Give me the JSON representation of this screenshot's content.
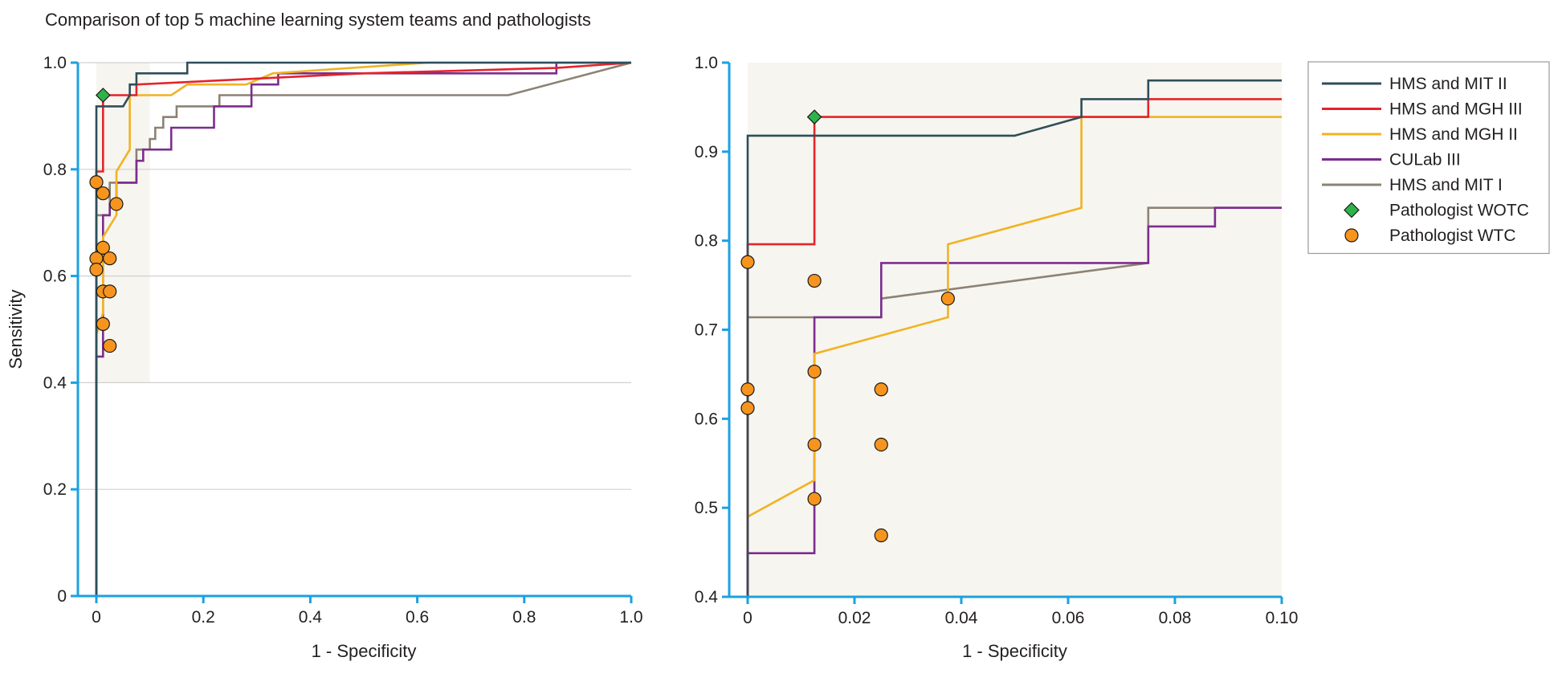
{
  "figure_title": "Comparison of top 5 machine learning system teams and pathologists",
  "colors": {
    "HMS and MIT II": "#2e4e5a",
    "HMS and MGH III": "#e3242b",
    "HMS and MGH II": "#f0b323",
    "CULab III": "#7b2d8e",
    "HMS and MIT I": "#8c8275",
    "Pathologist WOTC": "#2db34a",
    "Pathologist WTC": "#f7941d",
    "axis": "#1ba1e2",
    "grid": "#d0d0d0",
    "zoom_region": "#f7f5ef"
  },
  "chart_data": [
    {
      "type": "line",
      "subtype": "roc",
      "title": "",
      "xlabel": "1 - Specificity",
      "ylabel": "Sensitivity",
      "xlim": [
        0,
        1.0
      ],
      "ylim": [
        0,
        1.0
      ],
      "xticks": [
        "0",
        "0.2",
        "0.4",
        "0.6",
        "0.8",
        "1.0"
      ],
      "yticks": [
        "0",
        "0.2",
        "0.4",
        "0.6",
        "0.8",
        "1.0"
      ],
      "grid": "horizontal",
      "zoom_region": {
        "x": [
          0,
          0.1
        ],
        "y": [
          0.4,
          1.0
        ]
      },
      "series": [
        {
          "name": "HMS and MIT I",
          "x": [
            0,
            0,
            0.025,
            0.025,
            0.075,
            0.075,
            0.1,
            0.1,
            0.11,
            0.11,
            0.125,
            0.125,
            0.15,
            0.15,
            0.17,
            0.17,
            0.23,
            0.23,
            0.77,
            1.0
          ],
          "y": [
            0,
            0.714,
            0.714,
            0.775,
            0.775,
            0.837,
            0.837,
            0.857,
            0.857,
            0.878,
            0.878,
            0.898,
            0.898,
            0.918,
            0.918,
            0.918,
            0.918,
            0.939,
            0.939,
            1.0
          ]
        },
        {
          "name": "CULab III",
          "x": [
            0,
            0,
            0.0125,
            0.0125,
            0.025,
            0.025,
            0.0375,
            0.0375,
            0.075,
            0.075,
            0.0875,
            0.0875,
            0.125,
            0.125,
            0.14,
            0.14,
            0.22,
            0.22,
            0.29,
            0.29,
            0.34,
            0.34,
            0.86,
            0.86,
            1.0
          ],
          "y": [
            0,
            0.449,
            0.449,
            0.714,
            0.714,
            0.735,
            0.735,
            0.775,
            0.775,
            0.816,
            0.816,
            0.837,
            0.837,
            0.837,
            0.837,
            0.878,
            0.878,
            0.918,
            0.918,
            0.959,
            0.959,
            0.98,
            0.98,
            1.0,
            1.0
          ]
        },
        {
          "name": "HMS and MGH II",
          "x": [
            0,
            0.0125,
            0.0125,
            0.0375,
            0.0375,
            0.0625,
            0.0625,
            0.075,
            0.075,
            0.14,
            0.17,
            0.28,
            0.33,
            0.62,
            1.0
          ],
          "y": [
            0.49,
            0.531,
            0.673,
            0.714,
            0.796,
            0.837,
            0.939,
            0.939,
            0.939,
            0.939,
            0.959,
            0.959,
            0.98,
            1.0,
            1.0
          ]
        },
        {
          "name": "HMS and MGH III",
          "x": [
            0,
            0,
            0.0125,
            0.0125,
            0.075,
            0.075,
            0.5,
            0.86,
            1.0
          ],
          "y": [
            0,
            0.796,
            0.796,
            0.939,
            0.939,
            0.959,
            0.98,
            0.99,
            1.0
          ]
        },
        {
          "name": "HMS and MIT II",
          "x": [
            0,
            0,
            0.05,
            0.0625,
            0.0625,
            0.075,
            0.075,
            0.1,
            0.1,
            0.17,
            0.17,
            1.0
          ],
          "y": [
            0,
            0.918,
            0.918,
            0.939,
            0.959,
            0.959,
            0.98,
            0.98,
            0.98,
            0.98,
            1.0,
            1.0
          ]
        },
        {
          "name": "Pathologist WOTC",
          "type": "scatter",
          "x": [
            0.0125
          ],
          "y": [
            0.939
          ]
        },
        {
          "name": "Pathologist WTC",
          "type": "scatter",
          "x": [
            0,
            0,
            0,
            0.0125,
            0.0125,
            0.0125,
            0.0125,
            0.025,
            0.025,
            0.025,
            0.0375
          ],
          "y": [
            0.776,
            0.633,
            0.612,
            0.755,
            0.653,
            0.571,
            0.51,
            0.633,
            0.571,
            0.469,
            0.735
          ]
        }
      ]
    },
    {
      "type": "line",
      "subtype": "roc-zoom",
      "title": "",
      "xlabel": "1 - Specificity",
      "ylabel": "",
      "xlim": [
        0,
        0.1
      ],
      "ylim": [
        0.4,
        1.0
      ],
      "xticks": [
        "0",
        "0.02",
        "0.04",
        "0.06",
        "0.08",
        "0.10"
      ],
      "yticks": [
        "0.4",
        "0.5",
        "0.6",
        "0.7",
        "0.8",
        "0.9",
        "1.0"
      ],
      "legend": {
        "placement": "right",
        "entries": [
          "HMS and MIT II",
          "HMS and MGH III",
          "HMS and MGH II",
          "CULab III",
          "HMS and MIT I",
          "Pathologist WOTC",
          "Pathologist WTC"
        ]
      },
      "series": [
        {
          "name": "HMS and MIT I",
          "x": [
            0,
            0,
            0.025,
            0.025,
            0.075,
            0.075,
            0.1
          ],
          "y": [
            0.4,
            0.714,
            0.714,
            0.735,
            0.775,
            0.837,
            0.837
          ]
        },
        {
          "name": "CULab III",
          "x": [
            0,
            0,
            0.0125,
            0.0125,
            0.025,
            0.025,
            0.0375,
            0.075,
            0.075,
            0.0875,
            0.0875,
            0.1
          ],
          "y": [
            0.4,
            0.449,
            0.449,
            0.714,
            0.714,
            0.775,
            0.775,
            0.775,
            0.816,
            0.816,
            0.837,
            0.837
          ]
        },
        {
          "name": "HMS and MGH II",
          "x": [
            0,
            0.0125,
            0.0125,
            0.0375,
            0.0375,
            0.0625,
            0.0625,
            0.1
          ],
          "y": [
            0.49,
            0.531,
            0.673,
            0.714,
            0.796,
            0.837,
            0.939,
            0.939
          ]
        },
        {
          "name": "HMS and MGH III",
          "x": [
            0,
            0,
            0.0125,
            0.0125,
            0.075,
            0.075,
            0.1
          ],
          "y": [
            0.4,
            0.796,
            0.796,
            0.939,
            0.939,
            0.959,
            0.959
          ]
        },
        {
          "name": "HMS and MIT II",
          "x": [
            0,
            0,
            0.05,
            0.0625,
            0.0625,
            0.075,
            0.075,
            0.1
          ],
          "y": [
            0.4,
            0.918,
            0.918,
            0.939,
            0.959,
            0.959,
            0.98,
            0.98
          ]
        },
        {
          "name": "Pathologist WOTC",
          "type": "scatter",
          "x": [
            0.0125
          ],
          "y": [
            0.939
          ]
        },
        {
          "name": "Pathologist WTC",
          "type": "scatter",
          "x": [
            0,
            0,
            0,
            0.0125,
            0.0125,
            0.0125,
            0.0125,
            0.025,
            0.025,
            0.025,
            0.0375
          ],
          "y": [
            0.776,
            0.633,
            0.612,
            0.755,
            0.653,
            0.571,
            0.51,
            0.633,
            0.571,
            0.469,
            0.735
          ]
        }
      ]
    }
  ]
}
